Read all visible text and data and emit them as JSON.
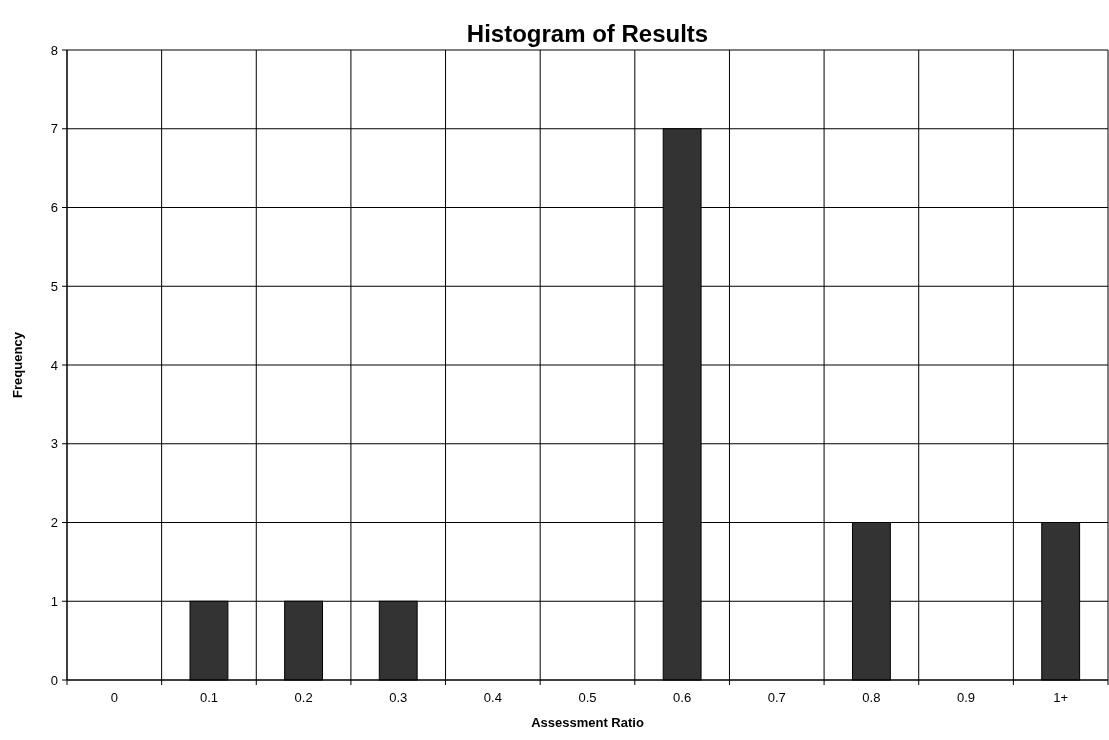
{
  "chart_data": {
    "type": "bar",
    "title": "Histogram of Results",
    "xlabel": "Assessment Ratio",
    "ylabel": "Frequency",
    "categories": [
      "0",
      "0.1",
      "0.2",
      "0.3",
      "0.4",
      "0.5",
      "0.6",
      "0.7",
      "0.8",
      "0.9",
      "1+"
    ],
    "values": [
      0,
      1,
      1,
      1,
      0,
      0,
      7,
      0,
      2,
      0,
      2
    ],
    "color": "#333333",
    "ylim": [
      0,
      8
    ],
    "yticks": [
      0,
      1,
      2,
      3,
      4,
      5,
      6,
      7,
      8
    ],
    "grid": true
  }
}
